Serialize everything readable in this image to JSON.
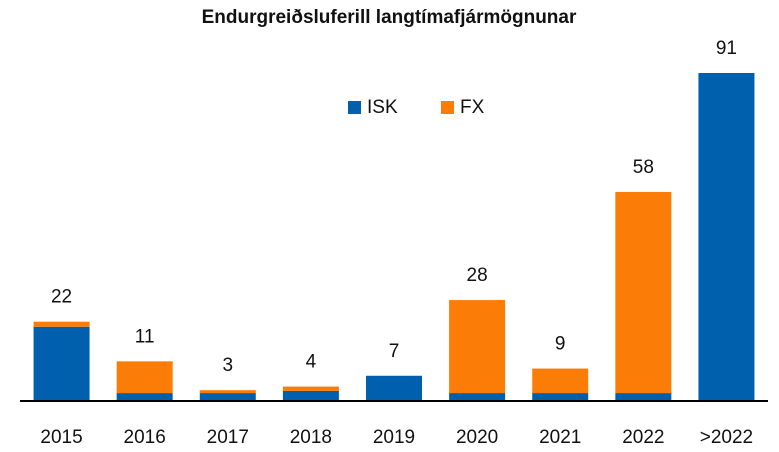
{
  "chart_data": {
    "type": "stacked_bar",
    "title": "Endurgreiðsluferill langtímafjármögnunar",
    "categories": [
      "2015",
      "2016",
      "2017",
      "2018",
      "2019",
      "2020",
      "2021",
      "2022",
      ">2022"
    ],
    "series": [
      {
        "name": "ISK",
        "color": "#0060ae",
        "values": [
          20.6,
          2.2,
          2.2,
          2.8,
          7,
          2.2,
          2.2,
          2.2,
          91
        ]
      },
      {
        "name": "FX",
        "color": "#fb7c06",
        "values": [
          1.4,
          8.8,
          0.8,
          1.2,
          0,
          25.8,
          6.8,
          55.8,
          0
        ]
      }
    ],
    "totals": [
      22,
      11,
      3,
      4,
      7,
      28,
      9,
      58,
      91
    ],
    "legend": "top-center"
  }
}
